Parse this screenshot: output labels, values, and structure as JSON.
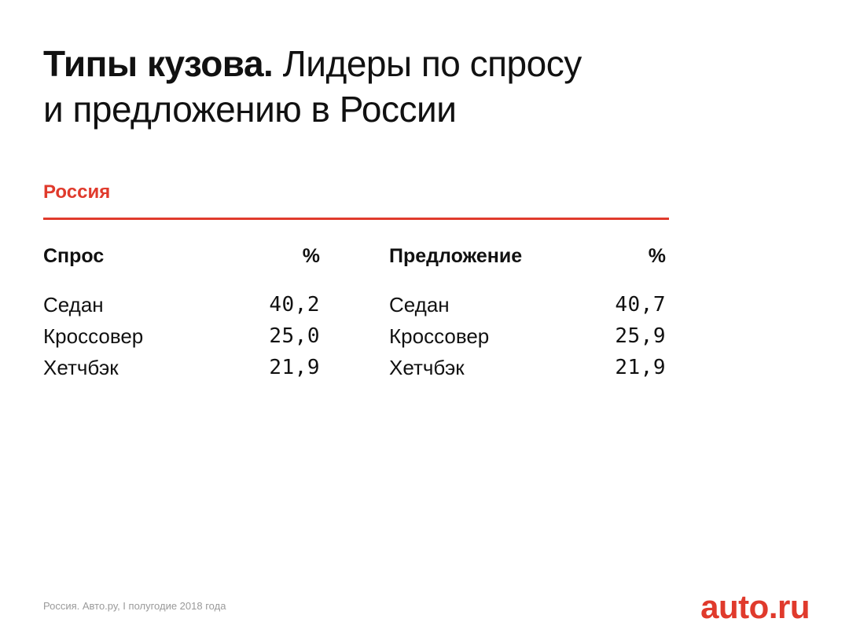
{
  "title": {
    "bold": "Типы кузова.",
    "regular_line1": " Лидеры по спросу",
    "regular_line2": "и предложению в России"
  },
  "section": {
    "label": "Россия"
  },
  "colors": {
    "accent": "#e03a2c",
    "text": "#111111",
    "muted": "#9a9a9a"
  },
  "demand": {
    "header": "Спрос",
    "unit": "%",
    "rows": [
      {
        "name": "Седан",
        "value": "40,2"
      },
      {
        "name": "Кроссовер",
        "value": "25,0"
      },
      {
        "name": "Хетчбэк",
        "value": "21,9"
      }
    ]
  },
  "supply": {
    "header": "Предложение",
    "unit": "%",
    "rows": [
      {
        "name": "Седан",
        "value": "40,7"
      },
      {
        "name": "Кроссовер",
        "value": "25,9"
      },
      {
        "name": "Хетчбэк",
        "value": "21,9"
      }
    ]
  },
  "footer": {
    "source": "Россия. Авто.ру, I полугодие 2018 года",
    "logo": "auto.ru"
  }
}
